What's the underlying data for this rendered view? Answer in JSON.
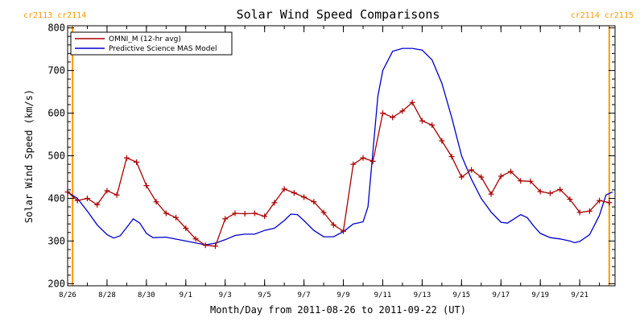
{
  "colors": {
    "omni": "#aa0000",
    "model": "#0000cc",
    "rotation": "#ff9900",
    "axis": "#000000"
  },
  "chart_data": {
    "type": "line",
    "title": "Solar Wind Speed Comparisons",
    "xlabel": "Month/Day from 2011-08-26 to 2011-09-22 (UT)",
    "ylabel": "Solar Wind Speed (km/s)",
    "ylim": [
      195,
      805
    ],
    "xlim": [
      "2011-08-26",
      "2011-09-22T19:00"
    ],
    "y_ticks": [
      200,
      300,
      400,
      500,
      600,
      700,
      800
    ],
    "x_ticks": [
      {
        "t": "2011-08-26",
        "label": "8/26"
      },
      {
        "t": "2011-08-28",
        "label": "8/28"
      },
      {
        "t": "2011-08-30",
        "label": "8/30"
      },
      {
        "t": "2011-09-01",
        "label": "9/1"
      },
      {
        "t": "2011-09-03",
        "label": "9/3"
      },
      {
        "t": "2011-09-05",
        "label": "9/5"
      },
      {
        "t": "2011-09-07",
        "label": "9/7"
      },
      {
        "t": "2011-09-09",
        "label": "9/9"
      },
      {
        "t": "2011-09-11",
        "label": "9/11"
      },
      {
        "t": "2011-09-13",
        "label": "9/13"
      },
      {
        "t": "2011-09-15",
        "label": "9/15"
      },
      {
        "t": "2011-09-17",
        "label": "9/17"
      },
      {
        "t": "2011-09-19",
        "label": "9/19"
      },
      {
        "t": "2011-09-21",
        "label": "9/21"
      }
    ],
    "legend": {
      "placement": "top-left",
      "entries": [
        "OMNI_M (12-hr avg)",
        "Predictive Science MAS Model"
      ]
    },
    "rotation_markers": [
      {
        "t": "2011-08-26T06:00",
        "label": "cr2113 cr2114"
      },
      {
        "t": "2011-09-22T12:00",
        "label": "cr2114 cr2115"
      }
    ],
    "series": [
      {
        "name": "OMNI_M (12-hr avg)",
        "marker": "plus",
        "points": [
          [
            "2011-08-26T00:00",
            415
          ],
          [
            "2011-08-26T12:00",
            395
          ],
          [
            "2011-08-27T00:00",
            400
          ],
          [
            "2011-08-27T12:00",
            385
          ],
          [
            "2011-08-28T00:00",
            418
          ],
          [
            "2011-08-28T12:00",
            408
          ],
          [
            "2011-08-29T00:00",
            495
          ],
          [
            "2011-08-29T12:00",
            485
          ],
          [
            "2011-08-30T00:00",
            430
          ],
          [
            "2011-08-30T12:00",
            392
          ],
          [
            "2011-08-31T00:00",
            365
          ],
          [
            "2011-08-31T12:00",
            355
          ],
          [
            "2011-09-01T00:00",
            330
          ],
          [
            "2011-09-01T12:00",
            305
          ],
          [
            "2011-09-02T00:00",
            290
          ],
          [
            "2011-09-02T12:00",
            288
          ],
          [
            "2011-09-03T00:00",
            352
          ],
          [
            "2011-09-03T12:00",
            365
          ],
          [
            "2011-09-04T00:00",
            364
          ],
          [
            "2011-09-04T12:00",
            365
          ],
          [
            "2011-09-05T00:00",
            358
          ],
          [
            "2011-09-05T12:00",
            390
          ],
          [
            "2011-09-06T00:00",
            422
          ],
          [
            "2011-09-06T12:00",
            413
          ],
          [
            "2011-09-07T00:00",
            403
          ],
          [
            "2011-09-07T12:00",
            392
          ],
          [
            "2011-09-08T00:00",
            367
          ],
          [
            "2011-09-08T12:00",
            338
          ],
          [
            "2011-09-09T00:00",
            323
          ],
          [
            "2011-09-09T12:00",
            480
          ],
          [
            "2011-09-10T00:00",
            495
          ],
          [
            "2011-09-10T12:00",
            487
          ],
          [
            "2011-09-11T00:00",
            600
          ],
          [
            "2011-09-11T12:00",
            590
          ],
          [
            "2011-09-12T00:00",
            605
          ],
          [
            "2011-09-12T12:00",
            625
          ],
          [
            "2011-09-13T00:00",
            582
          ],
          [
            "2011-09-13T12:00",
            572
          ],
          [
            "2011-09-14T00:00",
            535
          ],
          [
            "2011-09-14T12:00",
            498
          ],
          [
            "2011-09-15T00:00",
            450
          ],
          [
            "2011-09-15T12:00",
            467
          ],
          [
            "2011-09-16T00:00",
            450
          ],
          [
            "2011-09-16T12:00",
            410
          ],
          [
            "2011-09-17T00:00",
            452
          ],
          [
            "2011-09-17T12:00",
            463
          ],
          [
            "2011-09-18T00:00",
            441
          ],
          [
            "2011-09-18T12:00",
            440
          ],
          [
            "2011-09-19T00:00",
            416
          ],
          [
            "2011-09-19T12:00",
            412
          ],
          [
            "2011-09-20T00:00",
            421
          ],
          [
            "2011-09-20T12:00",
            398
          ],
          [
            "2011-09-21T00:00",
            367
          ],
          [
            "2011-09-21T12:00",
            370
          ],
          [
            "2011-09-22T00:00",
            395
          ],
          [
            "2011-09-22T12:00",
            390
          ]
        ]
      },
      {
        "name": "Predictive Science MAS Model",
        "marker": "none",
        "points": [
          [
            "2011-08-26T00:00",
            415
          ],
          [
            "2011-08-26T12:00",
            400
          ],
          [
            "2011-08-27T00:00",
            370
          ],
          [
            "2011-08-27T12:00",
            338
          ],
          [
            "2011-08-28T00:00",
            315
          ],
          [
            "2011-08-28T08:00",
            307
          ],
          [
            "2011-08-28T16:00",
            312
          ],
          [
            "2011-08-29T00:00",
            332
          ],
          [
            "2011-08-29T08:00",
            352
          ],
          [
            "2011-08-29T16:00",
            342
          ],
          [
            "2011-08-30T00:00",
            318
          ],
          [
            "2011-08-30T08:00",
            308
          ],
          [
            "2011-08-31T00:00",
            309
          ],
          [
            "2011-09-01T00:00",
            300
          ],
          [
            "2011-09-02T00:00",
            291
          ],
          [
            "2011-09-02T12:00",
            295
          ],
          [
            "2011-09-03T00:00",
            303
          ],
          [
            "2011-09-03T12:00",
            313
          ],
          [
            "2011-09-04T00:00",
            316
          ],
          [
            "2011-09-04T12:00",
            316
          ],
          [
            "2011-09-05T00:00",
            325
          ],
          [
            "2011-09-05T12:00",
            330
          ],
          [
            "2011-09-06T00:00",
            348
          ],
          [
            "2011-09-06T08:00",
            363
          ],
          [
            "2011-09-06T16:00",
            362
          ],
          [
            "2011-09-07T00:00",
            348
          ],
          [
            "2011-09-07T12:00",
            325
          ],
          [
            "2011-09-08T00:00",
            310
          ],
          [
            "2011-09-08T12:00",
            310
          ],
          [
            "2011-09-09T00:00",
            322
          ],
          [
            "2011-09-09T12:00",
            340
          ],
          [
            "2011-09-10T00:00",
            345
          ],
          [
            "2011-09-10T06:00",
            380
          ],
          [
            "2011-09-10T18:00",
            640
          ],
          [
            "2011-09-11T00:00",
            700
          ],
          [
            "2011-09-11T12:00",
            745
          ],
          [
            "2011-09-12T00:00",
            752
          ],
          [
            "2011-09-12T12:00",
            752
          ],
          [
            "2011-09-13T00:00",
            748
          ],
          [
            "2011-09-13T12:00",
            725
          ],
          [
            "2011-09-14T00:00",
            670
          ],
          [
            "2011-09-14T12:00",
            590
          ],
          [
            "2011-09-15T00:00",
            500
          ],
          [
            "2011-09-15T12:00",
            445
          ],
          [
            "2011-09-16T00:00",
            400
          ],
          [
            "2011-09-16T12:00",
            368
          ],
          [
            "2011-09-17T00:00",
            344
          ],
          [
            "2011-09-17T08:00",
            342
          ],
          [
            "2011-09-17T16:00",
            352
          ],
          [
            "2011-09-18T00:00",
            362
          ],
          [
            "2011-09-18T08:00",
            355
          ],
          [
            "2011-09-18T16:00",
            335
          ],
          [
            "2011-09-19T00:00",
            318
          ],
          [
            "2011-09-19T12:00",
            308
          ],
          [
            "2011-09-20T00:00",
            305
          ],
          [
            "2011-09-20T12:00",
            300
          ],
          [
            "2011-09-20T18:00",
            296
          ],
          [
            "2011-09-21T00:00",
            299
          ],
          [
            "2011-09-21T12:00",
            315
          ],
          [
            "2011-09-22T00:00",
            360
          ],
          [
            "2011-09-22T08:00",
            408
          ],
          [
            "2011-09-22T16:00",
            415
          ]
        ]
      }
    ]
  }
}
